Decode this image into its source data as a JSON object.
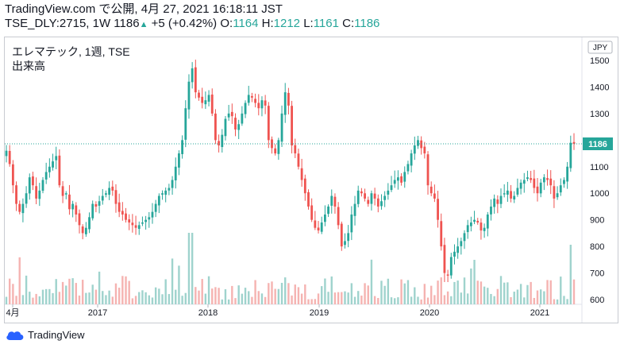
{
  "header": {
    "line1": "TradingView.com で公開, 4月 27, 2021 16:18:11 JST",
    "symbol": "TSE_DLY:2715, 1W",
    "last": "1186",
    "change": "+5 (+0.42%)",
    "o_label": "O:",
    "o_val": "1164",
    "h_label": "H:",
    "h_val": "1212",
    "l_label": "L:",
    "l_val": "1161",
    "c_label": "C:",
    "c_val": "1186"
  },
  "legend": {
    "title": "エレマテック, 1週, TSE",
    "volume": "出来高"
  },
  "footer": {
    "brand": "TradingView"
  },
  "chart_data": {
    "type": "candlestick",
    "currency": "JPY",
    "last_price": 1186,
    "last_price_label": "1186",
    "y_ticks": [
      "1500",
      "1400",
      "1300",
      "1200",
      "1100",
      "1000",
      "900",
      "800",
      "700",
      "600"
    ],
    "x_ticks": [
      "4月",
      "2017",
      "2018",
      "2019",
      "2020",
      "2021"
    ],
    "price_range": [
      600,
      1540
    ],
    "colors": {
      "up": "#26a69a",
      "down": "#ef5350",
      "up_vol": "#9fd3cd",
      "down_vol": "#f5b3b1",
      "last_line": "#26a69a"
    },
    "weekly_close": [
      1160,
      1110,
      1030,
      960,
      930,
      960,
      1000,
      1060,
      1030,
      980,
      1010,
      1050,
      1080,
      1100,
      1120,
      1140,
      1030,
      990,
      1000,
      940,
      960,
      920,
      880,
      850,
      870,
      910,
      960,
      950,
      970,
      990,
      1000,
      1020,
      1010,
      960,
      930,
      920,
      900,
      890,
      880,
      870,
      880,
      890,
      900,
      910,
      930,
      960,
      990,
      1000,
      1010,
      1020,
      1050,
      1100,
      1150,
      1200,
      1320,
      1420,
      1470,
      1380,
      1360,
      1340,
      1350,
      1370,
      1300,
      1200,
      1180,
      1220,
      1280,
      1300,
      1290,
      1240,
      1260,
      1300,
      1340,
      1370,
      1360,
      1340,
      1320,
      1350,
      1330,
      1200,
      1170,
      1150,
      1200,
      1300,
      1380,
      1330,
      1180,
      1150,
      1100,
      1050,
      1000,
      950,
      900,
      870,
      860,
      890,
      920,
      950,
      990,
      950,
      880,
      800,
      820,
      850,
      920,
      960,
      1010,
      1000,
      980,
      960,
      1000,
      980,
      950,
      970,
      990,
      1010,
      1030,
      1050,
      1060,
      1040,
      1080,
      1110,
      1150,
      1180,
      1200,
      1170,
      1150,
      1030,
      1000,
      980,
      900,
      800,
      700,
      690,
      760,
      780,
      800,
      820,
      850,
      880,
      890,
      900,
      890,
      860,
      870,
      920,
      950,
      980,
      960,
      990,
      1000,
      1010,
      980,
      990,
      1020,
      1040,
      1050,
      1060,
      1050,
      1020,
      1000,
      1040,
      1060,
      1050,
      1030,
      980,
      1000,
      1030,
      1050,
      1100,
      1190,
      1186
    ]
  }
}
